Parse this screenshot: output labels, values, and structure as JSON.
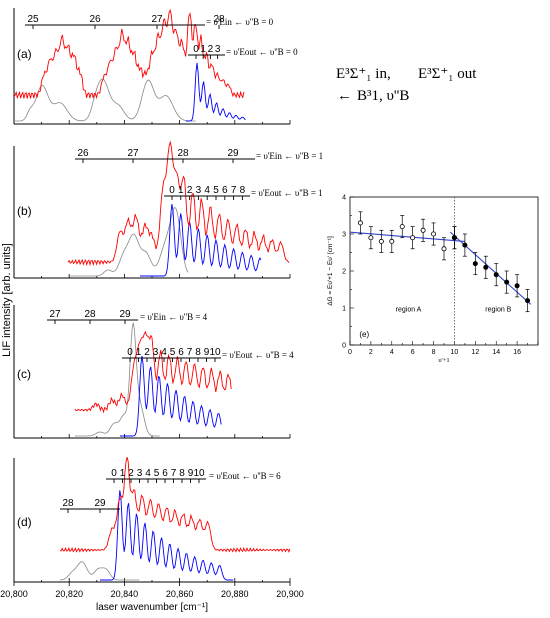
{
  "chart_data": [
    {
      "panel": "(a)",
      "type": "line",
      "ladders": [
        {
          "ticks": [
            "25",
            "26",
            "27",
            "28"
          ],
          "label": "= υ'Ein ← υ''B = 0"
        },
        {
          "ticks": [
            "0",
            "1",
            "2",
            "3"
          ],
          "label": "= υ'Eout ← υ''B = 0"
        }
      ],
      "series": [
        {
          "color": "#ff0000"
        },
        {
          "color": "#888888"
        },
        {
          "color": "#0000ff"
        }
      ]
    },
    {
      "panel": "(b)",
      "type": "line",
      "ladders": [
        {
          "ticks": [
            "26",
            "27",
            "28",
            "29"
          ],
          "label": "= υ'Ein ← υ''B = 1"
        },
        {
          "ticks": [
            "0",
            "1",
            "2",
            "3",
            "4",
            "5",
            "6",
            "7",
            "8"
          ],
          "label": "= υ'Eout ← υ''B = 1"
        }
      ],
      "series": [
        {
          "color": "#ff0000"
        },
        {
          "color": "#888888"
        },
        {
          "color": "#0000ff"
        }
      ]
    },
    {
      "panel": "(c)",
      "type": "line",
      "ladders": [
        {
          "ticks": [
            "27",
            "28",
            "29"
          ],
          "label": "= υ'Ein ← υ''B = 4"
        },
        {
          "ticks": [
            "0",
            "1",
            "2",
            "3",
            "4",
            "5",
            "6",
            "7",
            "8",
            "9",
            "10"
          ],
          "label": "= υ'Eout ← υ''B = 4"
        }
      ],
      "series": [
        {
          "color": "#ff0000"
        },
        {
          "color": "#888888"
        },
        {
          "color": "#0000ff"
        }
      ]
    },
    {
      "panel": "(d)",
      "type": "line",
      "ladders": [
        {
          "ticks": [
            "28",
            "29"
          ],
          "label": ""
        },
        {
          "ticks": [
            "0",
            "1",
            "2",
            "3",
            "4",
            "5",
            "6",
            "7",
            "8",
            "9",
            "10"
          ],
          "label": "= υ'Eout ← υ''B = 6"
        }
      ],
      "series": [
        {
          "color": "#ff0000"
        },
        {
          "color": "#888888"
        },
        {
          "color": "#0000ff"
        }
      ]
    },
    {
      "panel": "(e)",
      "type": "scatter",
      "xlabel": "υ'+1",
      "ylabel": "ΔG = Eυ'+1 − Eυ' [cm⁻¹]",
      "xlim": [
        0,
        18
      ],
      "ylim": [
        0,
        4
      ],
      "xticks": [
        "0",
        "2",
        "4",
        "6",
        "8",
        "10",
        "12",
        "14",
        "16"
      ],
      "yticks": [
        "0",
        "1",
        "2",
        "3",
        "4"
      ],
      "regions": [
        "region A",
        "region B"
      ],
      "region_boundary": 10,
      "series": [
        {
          "marker": "open-circle",
          "x": [
            1,
            2,
            3,
            4,
            5,
            6,
            7,
            8,
            9,
            10
          ],
          "y": [
            3.3,
            2.9,
            2.8,
            2.8,
            3.2,
            2.9,
            3.1,
            3.0,
            2.6,
            2.9
          ],
          "err": [
            0.3,
            0.3,
            0.3,
            0.3,
            0.3,
            0.3,
            0.3,
            0.3,
            0.3,
            0.3
          ]
        },
        {
          "marker": "filled-circle",
          "x": [
            10,
            11,
            12,
            13,
            14,
            15,
            16,
            17
          ],
          "y": [
            2.9,
            2.7,
            2.2,
            2.1,
            1.9,
            1.7,
            1.6,
            1.2
          ],
          "err": [
            0.3,
            0.3,
            0.3,
            0.3,
            0.3,
            0.3,
            0.3,
            0.3
          ]
        }
      ],
      "fits": [
        {
          "x": [
            0,
            11
          ],
          "y": [
            3.05,
            2.8
          ],
          "color": "#3344cc"
        },
        {
          "x": [
            9.6,
            17.3
          ],
          "y": [
            3.05,
            1.1
          ],
          "color": "#3344cc"
        }
      ]
    }
  ],
  "shared_axis": {
    "xlabel": "laser wavenumber [cm⁻¹]",
    "ylabel": "LIF intensity [arb. units]",
    "xticks": [
      "20,800",
      "20,820",
      "20,840",
      "20,860",
      "20,880",
      "20,900"
    ],
    "xlim": [
      20800,
      20900
    ]
  },
  "title": {
    "part1": "E³Σ⁺₁ in",
    "part2": "E³Σ⁺₁ out",
    "part3": "B³1, υ''B"
  }
}
